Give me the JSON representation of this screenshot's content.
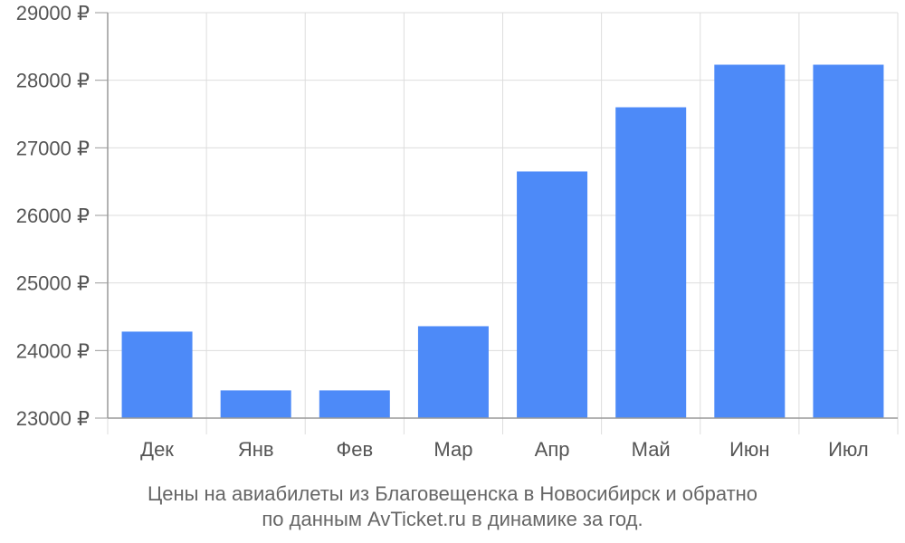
{
  "chart_data": {
    "type": "bar",
    "categories": [
      "Дек",
      "Янв",
      "Фев",
      "Мар",
      "Апр",
      "Май",
      "Июн",
      "Июл"
    ],
    "values": [
      24280,
      23410,
      23410,
      24360,
      26650,
      27600,
      28230,
      28230
    ],
    "ylim": [
      23000,
      29000
    ],
    "y_ticks": [
      {
        "value": 23000,
        "label": "23000 ₽"
      },
      {
        "value": 24000,
        "label": "24000 ₽"
      },
      {
        "value": 25000,
        "label": "25000 ₽"
      },
      {
        "value": 26000,
        "label": "26000 ₽"
      },
      {
        "value": 27000,
        "label": "27000 ₽"
      },
      {
        "value": 28000,
        "label": "28000 ₽"
      },
      {
        "value": 29000,
        "label": "29000 ₽"
      }
    ],
    "grid": true,
    "legend": "none"
  },
  "colors": {
    "bar": "#4d8af8",
    "grid": "#dddddd",
    "axis": "#999999",
    "tick_text": "#555555",
    "caption_text": "#666666"
  },
  "caption": {
    "line1": "Цены на авиабилеты из Благовещенска в Новосибирск и обратно",
    "line2": "по данным AvTicket.ru в динамике за год."
  }
}
